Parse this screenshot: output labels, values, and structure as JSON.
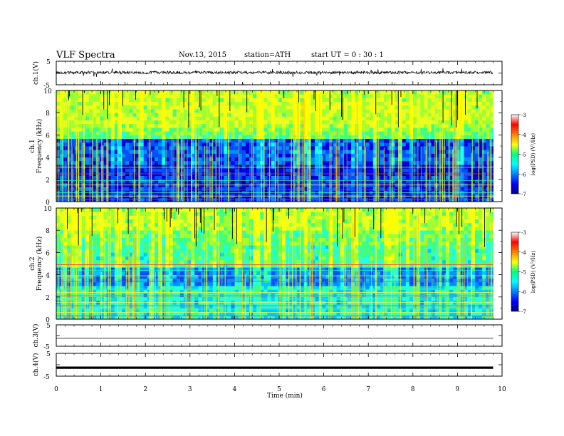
{
  "header": {
    "title": "VLF  Spectra",
    "date": "Nov.13,  2015",
    "station": "station=ATH",
    "start_ut": "start  UT  =    0  : 30 : 1"
  },
  "chart_data": [
    {
      "type": "line",
      "panel": "ch1-waveform",
      "ylabel": "ch.1(V)",
      "ylim": [
        -5,
        5
      ],
      "yticks": [
        "5",
        "-5"
      ],
      "x_range_min": [
        0,
        9.8
      ],
      "baseline_v": 0.2
    },
    {
      "type": "heatmap",
      "panel": "ch1-spectrogram",
      "ylabel": "ch.1\nFrequency  (kHz)",
      "ylabel_lines": [
        "ch.1",
        "Frequency  (kHz)"
      ],
      "ylim_khz": [
        0,
        10
      ],
      "yticks": [
        "0",
        "2",
        "4",
        "6",
        "8",
        "10"
      ],
      "x_range_min": [
        0,
        9.8
      ],
      "colorbar": {
        "label": "log(PSD) (V²/Hz)",
        "range": [
          -7,
          -3
        ],
        "ticks": [
          "-3",
          "-4",
          "-5",
          "-6",
          "-7"
        ],
        "colors": [
          "#000080",
          "#0000ff",
          "#0080ff",
          "#00ffff",
          "#00ff80",
          "#ffff00",
          "#ff8000",
          "#ff0000",
          "#ffffff"
        ]
      }
    },
    {
      "type": "heatmap",
      "panel": "ch2-spectrogram",
      "ylabel": "ch.2\nFrequency  (kHz)",
      "ylabel_lines": [
        "ch.2",
        "Frequency  (kHz)"
      ],
      "ylim_khz": [
        0,
        10
      ],
      "yticks": [
        "0",
        "2",
        "4",
        "6",
        "8",
        "10"
      ],
      "x_range_min": [
        0,
        9.8
      ],
      "colorbar": {
        "label": "log(PSD) (V²/Hz)",
        "range": [
          -7,
          -3
        ],
        "ticks": [
          "-3",
          "-4",
          "-5",
          "-6",
          "-7"
        ]
      }
    },
    {
      "type": "line",
      "panel": "ch3-waveform",
      "ylabel": "ch.3(V)",
      "ylim": [
        -5,
        5
      ],
      "yticks": [
        "5",
        "-5"
      ],
      "x_range_min": [
        0,
        9.8
      ],
      "baseline_v": -1.3
    },
    {
      "type": "line",
      "panel": "ch4-waveform",
      "ylabel": "ch.4(V)",
      "ylim": [
        -5,
        5
      ],
      "yticks": [
        "5",
        "-5"
      ],
      "x_range_min": [
        0,
        9.8
      ],
      "baseline_v": -1.3
    }
  ],
  "x_axis": {
    "label": "Time  (min)",
    "ticks": [
      "0",
      "1",
      "2",
      "3",
      "4",
      "5",
      "6",
      "7",
      "8",
      "9",
      "10"
    ],
    "range": [
      0,
      10
    ]
  }
}
